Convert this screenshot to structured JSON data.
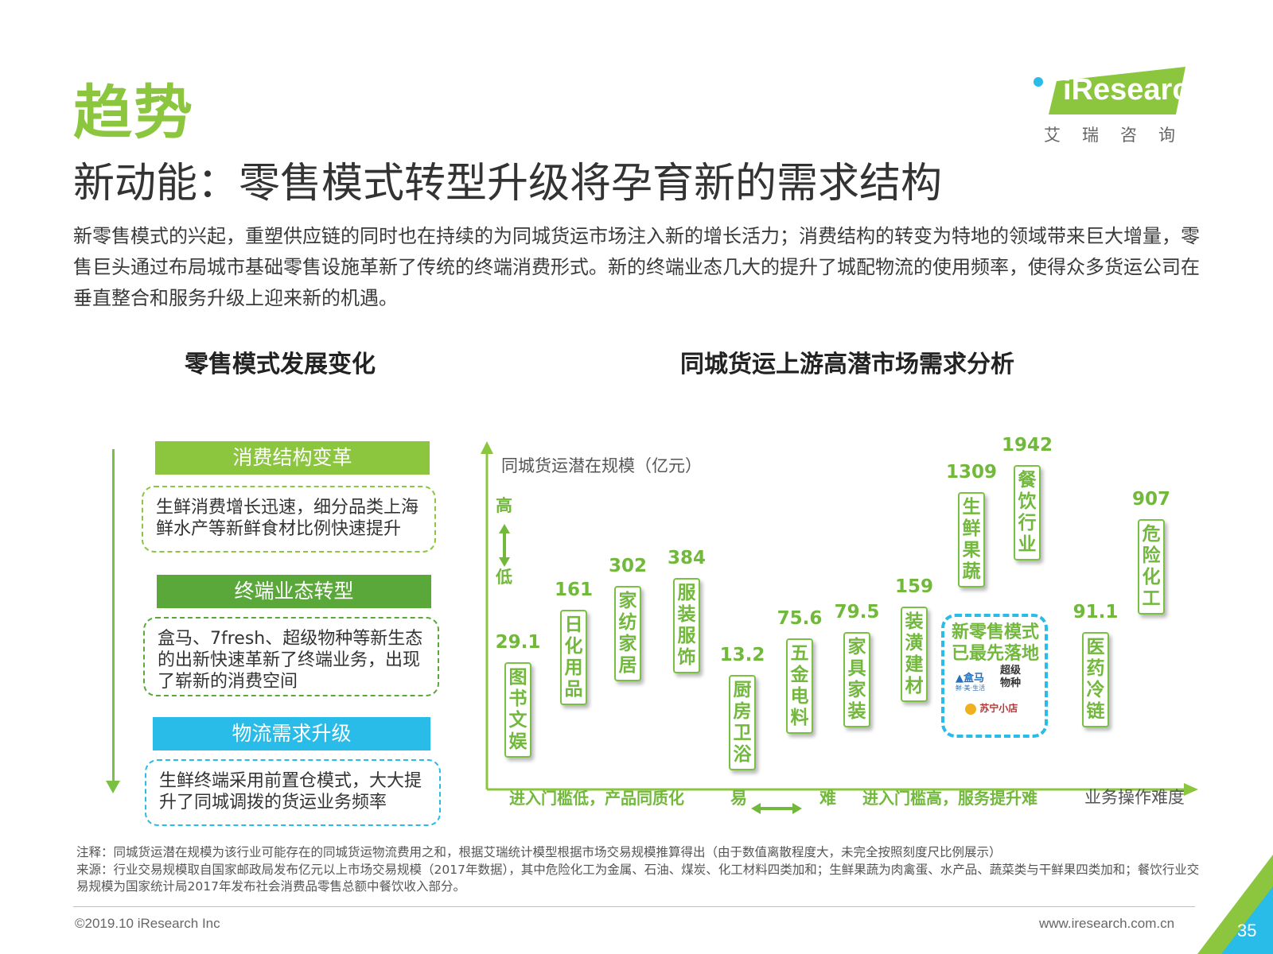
{
  "header": {
    "section_label": "趋势",
    "main_title": "新动能：零售模式转型升级将孕育新的需求结构",
    "logo_text": "iResearch",
    "logo_cn": "艾瑞咨询"
  },
  "intro": "新零售模式的兴起，重塑供应链的同时也在持续的为同城货运市场注入新的增长活力；消费结构的转变为特地的领域带来巨大增量，零售巨头通过布局城市基础零售设施革新了传统的终端消费形式。新的终端业态几大的提升了城配物流的使用频率，使得众多货运公司在垂直整合和服务升级上迎来新的机遇。",
  "left_panel": {
    "title": "零售模式发展变化",
    "items": [
      {
        "heading": "消费结构变革",
        "text": "生鲜消费增长迅速，细分品类上海鲜水产等新鲜食材比例快速提升"
      },
      {
        "heading": "终端业态转型",
        "text": "盒马、7fresh、超级物种等新生态的出新快速革新了终端业务，出现了崭新的消费空间"
      },
      {
        "heading": "物流需求升级",
        "text": "生鲜终端采用前置仓模式，大大提升了同城调拨的货运业务频率"
      }
    ]
  },
  "chart_title": "同城货运上游高潜市场需求分析",
  "chart_data": {
    "type": "scatter",
    "ylabel": "同城货运潜在规模（亿元）",
    "xlabel": "业务操作难度",
    "y_high": "高",
    "y_low": "低",
    "x_easy": "易",
    "x_hard": "难",
    "x_left_note": "进入门槛低，产品同质化",
    "x_right_note": "进入门槛高，服务提升难",
    "points": [
      {
        "label": "图书文娱",
        "value": "29.1"
      },
      {
        "label": "日化用品",
        "value": "161"
      },
      {
        "label": "家纺家居",
        "value": "302"
      },
      {
        "label": "服装服饰",
        "value": "384"
      },
      {
        "label": "厨房卫浴",
        "value": "13.2"
      },
      {
        "label": "五金电料",
        "value": "75.6"
      },
      {
        "label": "家具家装",
        "value": "79.5"
      },
      {
        "label": "装潢建材",
        "value": "159"
      },
      {
        "label": "生鲜果蔬",
        "value": "1309"
      },
      {
        "label": "餐饮行业",
        "value": "1942"
      },
      {
        "label": "医药冷链",
        "value": "91.1"
      },
      {
        "label": "危险化工",
        "value": "907"
      }
    ],
    "callout": {
      "text": "新零售模式已最先落地",
      "brands": [
        "盒马",
        "鲜·美·生活",
        "超级物种",
        "苏宁小店"
      ]
    }
  },
  "footnotes": {
    "note": "注释：同城货运潜在规模为该行业可能存在的同城货运物流费用之和，根据艾瑞统计模型根据市场交易规模推算得出（由于数值离散程度大，未完全按照刻度尺比例展示）",
    "source": "来源：行业交易规模取自国家邮政局发布亿元以上市场交易规模（2017年数据），其中危险化工为金属、石油、煤炭、化工材料四类加和；生鲜果蔬为肉禽蛋、水产品、蔬菜类与干鲜果四类加和；餐饮行业交易规模为国家统计局2017年发布社会消费品零售总额中餐饮收入部分。"
  },
  "footer": {
    "copyright": "©2019.10 iResearch Inc",
    "website": "www.iresearch.com.cn",
    "page_number": "35"
  },
  "colors": {
    "accent_green": "#8CC63F",
    "dark_green": "#5BA83A",
    "blue": "#29BCE8"
  }
}
